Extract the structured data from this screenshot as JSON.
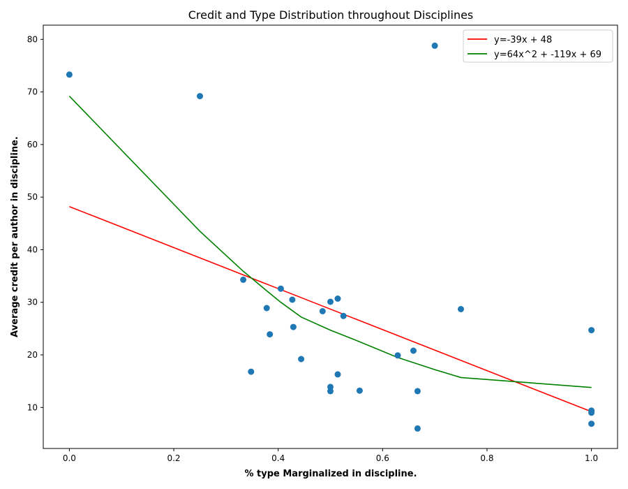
{
  "chart_data": {
    "type": "scatter",
    "title": "Credit and Type Distribution throughout Disciplines",
    "xlabel": "% type Marginalized in discipline.",
    "ylabel": "Average credit per author in discipline.",
    "xlim": [
      -0.05,
      1.05
    ],
    "ylim": [
      2.2,
      82.7
    ],
    "xticks": [
      0.0,
      0.2,
      0.4,
      0.6,
      0.8,
      1.0
    ],
    "xtick_labels": [
      "0.0",
      "0.2",
      "0.4",
      "0.6",
      "0.8",
      "1.0"
    ],
    "yticks": [
      10,
      20,
      30,
      40,
      50,
      60,
      70,
      80
    ],
    "ytick_labels": [
      "10",
      "20",
      "30",
      "40",
      "50",
      "60",
      "70",
      "80"
    ],
    "grid": false,
    "legend_position": "top-right",
    "scatter_color": "#1f77b4",
    "points": [
      {
        "x": 0.0,
        "y": 73.3
      },
      {
        "x": 0.25,
        "y": 69.2
      },
      {
        "x": 0.333,
        "y": 34.3
      },
      {
        "x": 0.348,
        "y": 16.8
      },
      {
        "x": 0.378,
        "y": 28.9
      },
      {
        "x": 0.384,
        "y": 23.9
      },
      {
        "x": 0.405,
        "y": 32.6
      },
      {
        "x": 0.427,
        "y": 30.5
      },
      {
        "x": 0.429,
        "y": 25.3
      },
      {
        "x": 0.444,
        "y": 19.2
      },
      {
        "x": 0.485,
        "y": 28.3
      },
      {
        "x": 0.5,
        "y": 30.1
      },
      {
        "x": 0.5,
        "y": 13.9
      },
      {
        "x": 0.5,
        "y": 13.1
      },
      {
        "x": 0.514,
        "y": 30.7
      },
      {
        "x": 0.514,
        "y": 16.3
      },
      {
        "x": 0.525,
        "y": 27.4
      },
      {
        "x": 0.556,
        "y": 13.2
      },
      {
        "x": 0.629,
        "y": 19.9
      },
      {
        "x": 0.659,
        "y": 20.8
      },
      {
        "x": 0.667,
        "y": 13.1
      },
      {
        "x": 0.667,
        "y": 6.0
      },
      {
        "x": 0.7,
        "y": 78.8
      },
      {
        "x": 0.75,
        "y": 28.7
      },
      {
        "x": 1.0,
        "y": 24.7
      },
      {
        "x": 1.0,
        "y": 9.4
      },
      {
        "x": 1.0,
        "y": 9.0
      },
      {
        "x": 1.0,
        "y": 6.9
      }
    ],
    "series": [
      {
        "name": "y=-39x + 48",
        "color": "#ff0000",
        "x": [
          0.0,
          1.0
        ],
        "y": [
          48.2,
          9.2
        ]
      },
      {
        "name": "y=64x^2 + -119x + 69",
        "color": "#008000",
        "x": [
          0.0,
          0.25,
          0.333,
          0.378,
          0.405,
          0.444,
          0.5,
          0.556,
          0.629,
          0.7,
          0.75,
          1.0
        ],
        "y": [
          69.2,
          43.5,
          35.9,
          32.2,
          30.0,
          27.2,
          24.7,
          22.5,
          19.5,
          17.2,
          15.7,
          13.8
        ]
      }
    ]
  }
}
